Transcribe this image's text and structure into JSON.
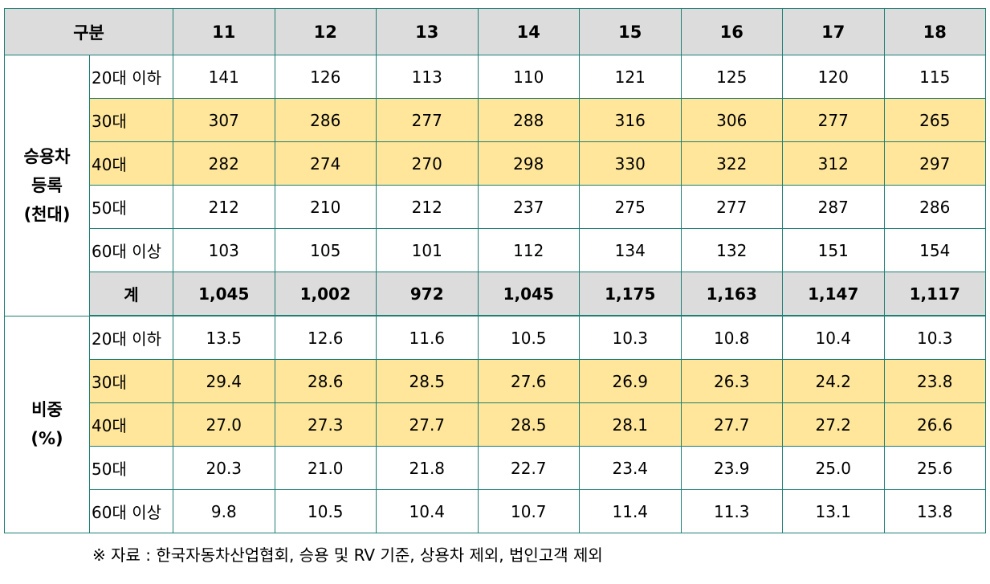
{
  "header": {
    "corner": "구분",
    "years": [
      "11",
      "12",
      "13",
      "14",
      "15",
      "16",
      "17",
      "18"
    ]
  },
  "sections": [
    {
      "group_line1": "승용차",
      "group_line2": "등록",
      "group_line3": "(천대)",
      "rows": [
        {
          "label": "20대 이하",
          "values": [
            "141",
            "126",
            "113",
            "110",
            "121",
            "125",
            "120",
            "115"
          ]
        },
        {
          "label": "30대",
          "values": [
            "307",
            "286",
            "277",
            "288",
            "316",
            "306",
            "277",
            "265"
          ]
        },
        {
          "label": "40대",
          "values": [
            "282",
            "274",
            "270",
            "298",
            "330",
            "322",
            "312",
            "297"
          ]
        },
        {
          "label": "50대",
          "values": [
            "212",
            "210",
            "212",
            "237",
            "275",
            "277",
            "287",
            "286"
          ]
        },
        {
          "label": "60대 이상",
          "values": [
            "103",
            "105",
            "101",
            "112",
            "134",
            "132",
            "151",
            "154"
          ]
        },
        {
          "label": "계",
          "values": [
            "1,045",
            "1,002",
            "972",
            "1,045",
            "1,175",
            "1,163",
            "1,147",
            "1,117"
          ]
        }
      ]
    },
    {
      "group_line1": "비중",
      "group_line2": "(%)",
      "rows": [
        {
          "label": "20대 이하",
          "values": [
            "13.5",
            "12.6",
            "11.6",
            "10.5",
            "10.3",
            "10.8",
            "10.4",
            "10.3"
          ]
        },
        {
          "label": "30대",
          "values": [
            "29.4",
            "28.6",
            "28.5",
            "27.6",
            "26.9",
            "26.3",
            "24.2",
            "23.8"
          ]
        },
        {
          "label": "40대",
          "values": [
            "27.0",
            "27.3",
            "27.7",
            "28.5",
            "28.1",
            "27.7",
            "27.2",
            "26.6"
          ]
        },
        {
          "label": "50대",
          "values": [
            "20.3",
            "21.0",
            "21.8",
            "22.7",
            "23.4",
            "23.9",
            "25.0",
            "25.6"
          ]
        },
        {
          "label": "60대 이상",
          "values": [
            "9.8",
            "10.5",
            "10.4",
            "10.7",
            "11.4",
            "11.3",
            "13.1",
            "13.8"
          ]
        }
      ]
    }
  ],
  "note": "※ 자료 : 한국자동차산업협회, 승용 및 RV 기준, 상용차 제외, 법인고객 제외",
  "colors": {
    "header_bg": "#dcdcdc",
    "highlight_bg": "#ffe69b",
    "border": "#1d7f73"
  }
}
